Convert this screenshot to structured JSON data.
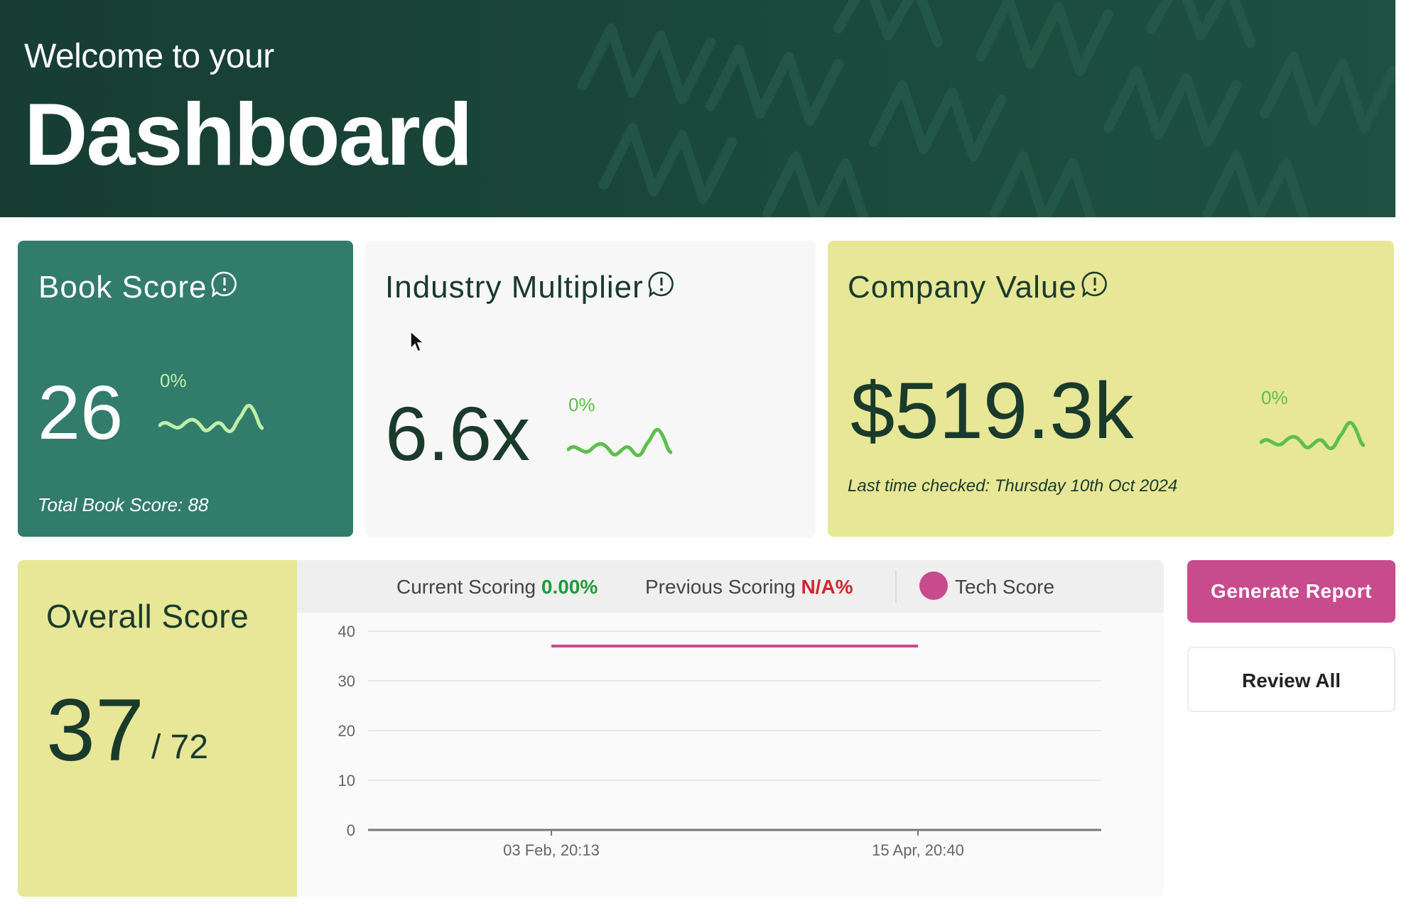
{
  "hero": {
    "subtitle": "Welcome to your",
    "title": "Dashboard"
  },
  "book_score": {
    "label": "Book Score",
    "value": "26",
    "change": "0%",
    "total": "Total Book Score: 88"
  },
  "industry_multiplier": {
    "label": "Industry Multiplier",
    "value": "6.6x",
    "change": "0%"
  },
  "company_value": {
    "label": "Company Value",
    "value": "$519.3k",
    "change": "0%",
    "last_checked": "Last time checked: Thursday 10th Oct 2024"
  },
  "overall_score": {
    "label": "Overall Score",
    "value": "37",
    "max": "/ 72"
  },
  "chart_header": {
    "current_label": "Current Scoring",
    "current_value": "0.00%",
    "previous_label": "Previous Scoring",
    "previous_value": "N/A%",
    "legend_label": "Tech Score"
  },
  "actions": {
    "generate": "Generate Report",
    "review": "Review All"
  },
  "colors": {
    "accent": "#c84b8e",
    "positive": "#1f9a3c",
    "negative": "#d0252f",
    "spark": "#5cc04a"
  },
  "chart_data": {
    "type": "line",
    "x": [
      "03 Feb, 20:13",
      "15 Apr, 20:40"
    ],
    "series": [
      {
        "name": "Tech Score",
        "values": [
          37,
          37
        ],
        "color": "#c84b8e"
      }
    ],
    "yticks": [
      0,
      10,
      20,
      30,
      40
    ],
    "ylim": [
      0,
      40
    ],
    "grid": true,
    "legend": "top"
  }
}
